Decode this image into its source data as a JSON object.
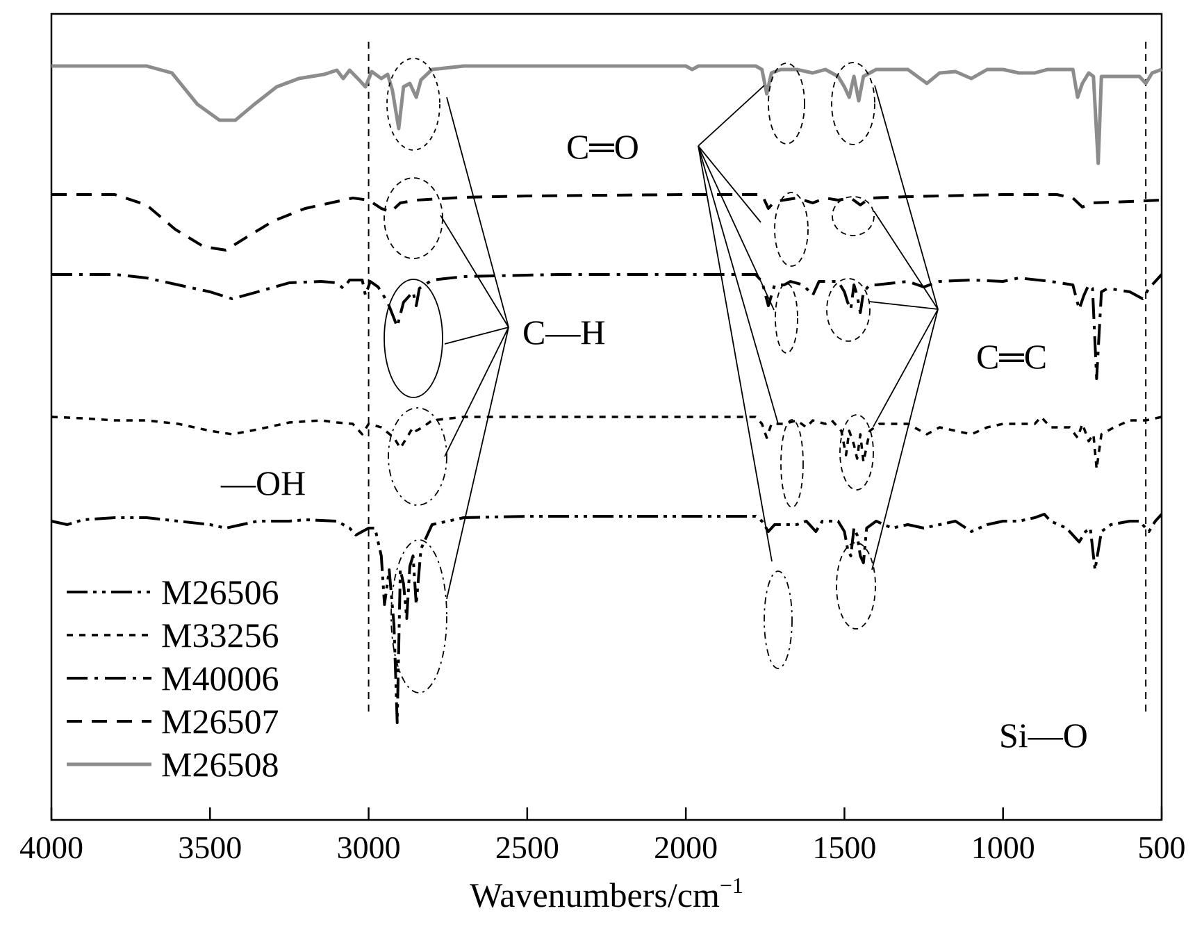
{
  "chart_data": {
    "type": "line",
    "title": "",
    "xlabel": "Wavenumbers/cm",
    "xlabel_superscript": "−1",
    "ylabel": "",
    "xlim": [
      4000,
      500
    ],
    "x_ticks": [
      4000,
      3500,
      3000,
      2500,
      2000,
      1500,
      1000,
      500
    ],
    "reference_lines": [
      3000,
      550
    ],
    "annotations": {
      "ch": "C—H",
      "co": "C═O",
      "cc": "C═C",
      "oh": "—OH",
      "sio": "Si—O"
    },
    "series": [
      {
        "name": "M26508",
        "style": "solid",
        "color": "#8c8c8c",
        "baseline": 0,
        "points": [
          [
            4000,
            0
          ],
          [
            3700,
            0
          ],
          [
            3620,
            -10
          ],
          [
            3540,
            -55
          ],
          [
            3470,
            -78
          ],
          [
            3420,
            -78
          ],
          [
            3360,
            -55
          ],
          [
            3290,
            -30
          ],
          [
            3220,
            -18
          ],
          [
            3140,
            -12
          ],
          [
            3100,
            -6
          ],
          [
            3080,
            -18
          ],
          [
            3060,
            -6
          ],
          [
            3030,
            -20
          ],
          [
            3010,
            -30
          ],
          [
            2990,
            -8
          ],
          [
            2960,
            -18
          ],
          [
            2940,
            -12
          ],
          [
            2925,
            -35
          ],
          [
            2905,
            -90
          ],
          [
            2890,
            -30
          ],
          [
            2870,
            -25
          ],
          [
            2850,
            -45
          ],
          [
            2835,
            -20
          ],
          [
            2800,
            -5
          ],
          [
            2700,
            0
          ],
          [
            2100,
            0
          ],
          [
            2000,
            0
          ],
          [
            1980,
            -5
          ],
          [
            1960,
            0
          ],
          [
            1780,
            0
          ],
          [
            1760,
            -5
          ],
          [
            1745,
            -40
          ],
          [
            1730,
            -10
          ],
          [
            1700,
            -5
          ],
          [
            1650,
            -5
          ],
          [
            1600,
            -10
          ],
          [
            1560,
            -5
          ],
          [
            1520,
            -15
          ],
          [
            1500,
            -30
          ],
          [
            1485,
            -45
          ],
          [
            1470,
            -15
          ],
          [
            1455,
            -50
          ],
          [
            1440,
            -15
          ],
          [
            1400,
            -5
          ],
          [
            1300,
            -5
          ],
          [
            1240,
            -25
          ],
          [
            1200,
            -10
          ],
          [
            1150,
            -8
          ],
          [
            1100,
            -18
          ],
          [
            1050,
            -5
          ],
          [
            1000,
            -5
          ],
          [
            950,
            -10
          ],
          [
            900,
            -10
          ],
          [
            860,
            -5
          ],
          [
            780,
            -5
          ],
          [
            765,
            -45
          ],
          [
            750,
            -25
          ],
          [
            730,
            -10
          ],
          [
            715,
            -15
          ],
          [
            700,
            -140
          ],
          [
            690,
            -15
          ],
          [
            650,
            -15
          ],
          [
            570,
            -15
          ],
          [
            550,
            -25
          ],
          [
            530,
            -10
          ],
          [
            500,
            -5
          ]
        ]
      },
      {
        "name": "M26507",
        "style": "dashed",
        "color": "#000000",
        "baseline": 0,
        "points": [
          [
            4000,
            0
          ],
          [
            3800,
            0
          ],
          [
            3700,
            -15
          ],
          [
            3610,
            -50
          ],
          [
            3520,
            -75
          ],
          [
            3450,
            -80
          ],
          [
            3380,
            -60
          ],
          [
            3300,
            -38
          ],
          [
            3200,
            -20
          ],
          [
            3100,
            -10
          ],
          [
            3050,
            -5
          ],
          [
            3000,
            -8
          ],
          [
            2960,
            -20
          ],
          [
            2930,
            -25
          ],
          [
            2900,
            -12
          ],
          [
            2850,
            -8
          ],
          [
            2700,
            -4
          ],
          [
            2500,
            -2
          ],
          [
            2000,
            0
          ],
          [
            1760,
            0
          ],
          [
            1740,
            -20
          ],
          [
            1720,
            -10
          ],
          [
            1650,
            -5
          ],
          [
            1600,
            -12
          ],
          [
            1560,
            -5
          ],
          [
            1520,
            -8
          ],
          [
            1480,
            -5
          ],
          [
            1450,
            -15
          ],
          [
            1420,
            -5
          ],
          [
            1300,
            -3
          ],
          [
            1000,
            0
          ],
          [
            900,
            0
          ],
          [
            830,
            0
          ],
          [
            780,
            -5
          ],
          [
            750,
            -18
          ],
          [
            720,
            -12
          ],
          [
            600,
            -10
          ],
          [
            500,
            -8
          ]
        ]
      },
      {
        "name": "M40006",
        "style": "dashdot",
        "color": "#000000",
        "baseline": 0,
        "points": [
          [
            4000,
            0
          ],
          [
            3800,
            0
          ],
          [
            3700,
            -5
          ],
          [
            3600,
            -15
          ],
          [
            3500,
            -25
          ],
          [
            3430,
            -35
          ],
          [
            3350,
            -25
          ],
          [
            3250,
            -12
          ],
          [
            3150,
            -10
          ],
          [
            3100,
            -12
          ],
          [
            3080,
            -20
          ],
          [
            3060,
            -8
          ],
          [
            3020,
            -8
          ],
          [
            3010,
            -30
          ],
          [
            2995,
            -10
          ],
          [
            2970,
            -18
          ],
          [
            2940,
            -40
          ],
          [
            2910,
            -75
          ],
          [
            2890,
            -40
          ],
          [
            2870,
            -30
          ],
          [
            2860,
            -25
          ],
          [
            2850,
            -45
          ],
          [
            2840,
            -20
          ],
          [
            2800,
            -8
          ],
          [
            2700,
            -3
          ],
          [
            2400,
            0
          ],
          [
            2000,
            0
          ],
          [
            1780,
            0
          ],
          [
            1760,
            -10
          ],
          [
            1740,
            -45
          ],
          [
            1720,
            -15
          ],
          [
            1690,
            -15
          ],
          [
            1670,
            -10
          ],
          [
            1630,
            -15
          ],
          [
            1600,
            -30
          ],
          [
            1580,
            -10
          ],
          [
            1520,
            -10
          ],
          [
            1500,
            -25
          ],
          [
            1490,
            -40
          ],
          [
            1480,
            -50
          ],
          [
            1470,
            -15
          ],
          [
            1460,
            -30
          ],
          [
            1450,
            -55
          ],
          [
            1440,
            -25
          ],
          [
            1420,
            -15
          ],
          [
            1400,
            -15
          ],
          [
            1300,
            -10
          ],
          [
            1250,
            -18
          ],
          [
            1200,
            -10
          ],
          [
            1100,
            -8
          ],
          [
            1000,
            -10
          ],
          [
            950,
            -5
          ],
          [
            850,
            -10
          ],
          [
            780,
            -15
          ],
          [
            760,
            -50
          ],
          [
            745,
            -30
          ],
          [
            730,
            -15
          ],
          [
            718,
            -20
          ],
          [
            705,
            -150
          ],
          [
            690,
            -25
          ],
          [
            670,
            -20
          ],
          [
            600,
            -25
          ],
          [
            560,
            -35
          ],
          [
            540,
            -20
          ],
          [
            500,
            0
          ]
        ]
      },
      {
        "name": "M33256",
        "style": "dotted",
        "color": "#000000",
        "baseline": 0,
        "points": [
          [
            4000,
            0
          ],
          [
            3900,
            -2
          ],
          [
            3800,
            -5
          ],
          [
            3700,
            -5
          ],
          [
            3600,
            -10
          ],
          [
            3500,
            -20
          ],
          [
            3430,
            -25
          ],
          [
            3350,
            -18
          ],
          [
            3250,
            -8
          ],
          [
            3150,
            -5
          ],
          [
            3100,
            -8
          ],
          [
            3050,
            -10
          ],
          [
            3020,
            -25
          ],
          [
            3000,
            -10
          ],
          [
            2960,
            -15
          ],
          [
            2920,
            -30
          ],
          [
            2900,
            -45
          ],
          [
            2880,
            -30
          ],
          [
            2860,
            -15
          ],
          [
            2850,
            -20
          ],
          [
            2830,
            -15
          ],
          [
            2800,
            -5
          ],
          [
            2700,
            0
          ],
          [
            2500,
            0
          ],
          [
            2000,
            0
          ],
          [
            1780,
            0
          ],
          [
            1760,
            -10
          ],
          [
            1745,
            -30
          ],
          [
            1730,
            -10
          ],
          [
            1690,
            -10
          ],
          [
            1650,
            -5
          ],
          [
            1620,
            -15
          ],
          [
            1600,
            -5
          ],
          [
            1560,
            -10
          ],
          [
            1540,
            -5
          ],
          [
            1510,
            -20
          ],
          [
            1495,
            -55
          ],
          [
            1485,
            -20
          ],
          [
            1470,
            -40
          ],
          [
            1460,
            -60
          ],
          [
            1450,
            -25
          ],
          [
            1440,
            -65
          ],
          [
            1420,
            -20
          ],
          [
            1390,
            -10
          ],
          [
            1300,
            -10
          ],
          [
            1240,
            -25
          ],
          [
            1200,
            -15
          ],
          [
            1100,
            -25
          ],
          [
            1050,
            -15
          ],
          [
            1000,
            -10
          ],
          [
            900,
            -10
          ],
          [
            880,
            0
          ],
          [
            850,
            -15
          ],
          [
            790,
            -15
          ],
          [
            765,
            -30
          ],
          [
            750,
            -10
          ],
          [
            730,
            -35
          ],
          [
            715,
            -25
          ],
          [
            705,
            -75
          ],
          [
            690,
            -25
          ],
          [
            650,
            -15
          ],
          [
            600,
            -5
          ],
          [
            550,
            -5
          ],
          [
            500,
            0
          ]
        ]
      },
      {
        "name": "M26506",
        "style": "dashdotdot",
        "color": "#000000",
        "baseline": 0,
        "points": [
          [
            4000,
            -10
          ],
          [
            3950,
            -15
          ],
          [
            3900,
            -8
          ],
          [
            3800,
            -5
          ],
          [
            3700,
            -5
          ],
          [
            3600,
            -10
          ],
          [
            3500,
            -15
          ],
          [
            3450,
            -20
          ],
          [
            3400,
            -15
          ],
          [
            3350,
            -10
          ],
          [
            3250,
            -10
          ],
          [
            3200,
            -8
          ],
          [
            3100,
            -10
          ],
          [
            3060,
            -20
          ],
          [
            3040,
            -30
          ],
          [
            3020,
            -25
          ],
          [
            3000,
            -20
          ],
          [
            2980,
            -20
          ],
          [
            2960,
            -60
          ],
          [
            2950,
            -130
          ],
          [
            2935,
            -80
          ],
          [
            2920,
            -160
          ],
          [
            2910,
            -300
          ],
          [
            2900,
            -80
          ],
          [
            2890,
            -100
          ],
          [
            2880,
            -150
          ],
          [
            2870,
            -75
          ],
          [
            2860,
            -60
          ],
          [
            2850,
            -130
          ],
          [
            2835,
            -50
          ],
          [
            2800,
            -15
          ],
          [
            2700,
            -5
          ],
          [
            2500,
            -3
          ],
          [
            2000,
            -3
          ],
          [
            1780,
            -3
          ],
          [
            1760,
            -10
          ],
          [
            1740,
            -25
          ],
          [
            1720,
            -15
          ],
          [
            1700,
            -15
          ],
          [
            1650,
            -15
          ],
          [
            1620,
            -10
          ],
          [
            1610,
            -15
          ],
          [
            1590,
            -25
          ],
          [
            1570,
            -10
          ],
          [
            1520,
            -10
          ],
          [
            1500,
            -25
          ],
          [
            1490,
            -50
          ],
          [
            1480,
            -60
          ],
          [
            1470,
            -20
          ],
          [
            1460,
            -30
          ],
          [
            1450,
            -60
          ],
          [
            1440,
            -70
          ],
          [
            1430,
            -20
          ],
          [
            1400,
            -10
          ],
          [
            1350,
            -20
          ],
          [
            1300,
            -15
          ],
          [
            1250,
            -20
          ],
          [
            1200,
            -15
          ],
          [
            1150,
            -10
          ],
          [
            1100,
            -25
          ],
          [
            1050,
            -15
          ],
          [
            1000,
            -10
          ],
          [
            950,
            -10
          ],
          [
            900,
            -5
          ],
          [
            870,
            0
          ],
          [
            850,
            -10
          ],
          [
            800,
            -20
          ],
          [
            760,
            -40
          ],
          [
            740,
            -25
          ],
          [
            725,
            -20
          ],
          [
            710,
            -80
          ],
          [
            690,
            -25
          ],
          [
            660,
            -15
          ],
          [
            600,
            -10
          ],
          [
            570,
            -10
          ],
          [
            540,
            -25
          ],
          [
            520,
            -10
          ],
          [
            500,
            0
          ]
        ]
      }
    ],
    "legend": [
      "M26506",
      "M33256",
      "M40006",
      "M26507",
      "M26508"
    ]
  }
}
